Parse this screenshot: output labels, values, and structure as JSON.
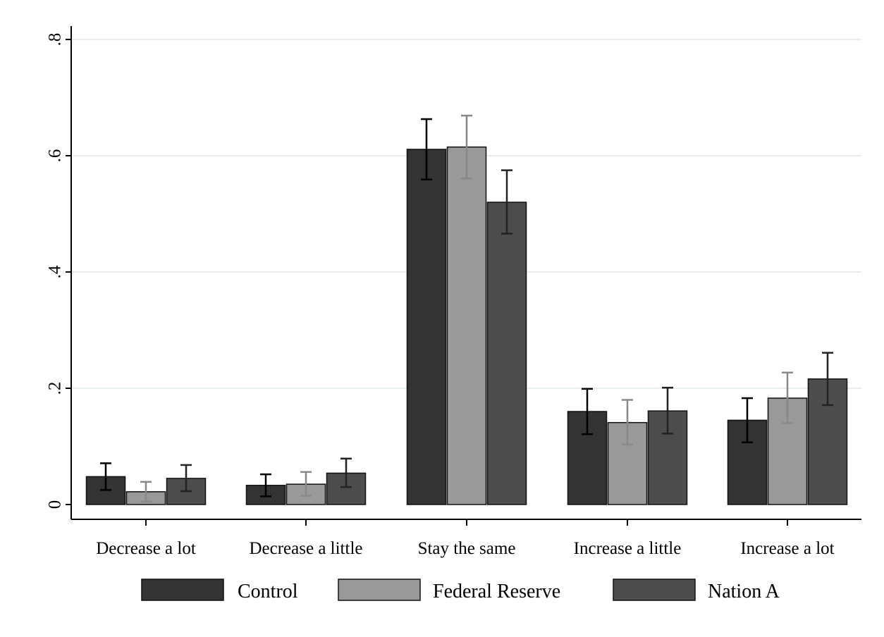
{
  "chart_data": {
    "type": "bar",
    "title": "",
    "xlabel": "",
    "ylabel": "",
    "ylim": [
      0,
      0.8
    ],
    "yticks": [
      {
        "value": 0,
        "label": "0"
      },
      {
        "value": 0.2,
        "label": ".2"
      },
      {
        "value": 0.4,
        "label": ".4"
      },
      {
        "value": 0.6,
        "label": ".6"
      },
      {
        "value": 0.8,
        "label": ".8"
      }
    ],
    "grid": true,
    "legend_position": "bottom",
    "error_bars": true,
    "categories": [
      "Decrease a lot",
      "Decrease a little",
      "Stay the same",
      "Increase a little",
      "Increase a lot"
    ],
    "series": [
      {
        "name": "Control",
        "color": "#333333",
        "errorbar_color": "#000000",
        "values": [
          0.048,
          0.033,
          0.611,
          0.16,
          0.145
        ],
        "lower": [
          0.025,
          0.014,
          0.559,
          0.121,
          0.107
        ],
        "upper": [
          0.071,
          0.052,
          0.663,
          0.199,
          0.183
        ]
      },
      {
        "name": "Federal Reserve",
        "color": "#999999",
        "errorbar_color": "#888888",
        "values": [
          0.022,
          0.035,
          0.615,
          0.141,
          0.183
        ],
        "lower": [
          0.005,
          0.015,
          0.561,
          0.103,
          0.14
        ],
        "upper": [
          0.039,
          0.056,
          0.669,
          0.18,
          0.227
        ]
      },
      {
        "name": "Nation A",
        "color": "#4d4d4d",
        "errorbar_color": "#222222",
        "values": [
          0.045,
          0.054,
          0.52,
          0.161,
          0.216
        ],
        "lower": [
          0.023,
          0.03,
          0.466,
          0.122,
          0.171
        ],
        "upper": [
          0.068,
          0.079,
          0.575,
          0.201,
          0.261
        ]
      }
    ]
  }
}
